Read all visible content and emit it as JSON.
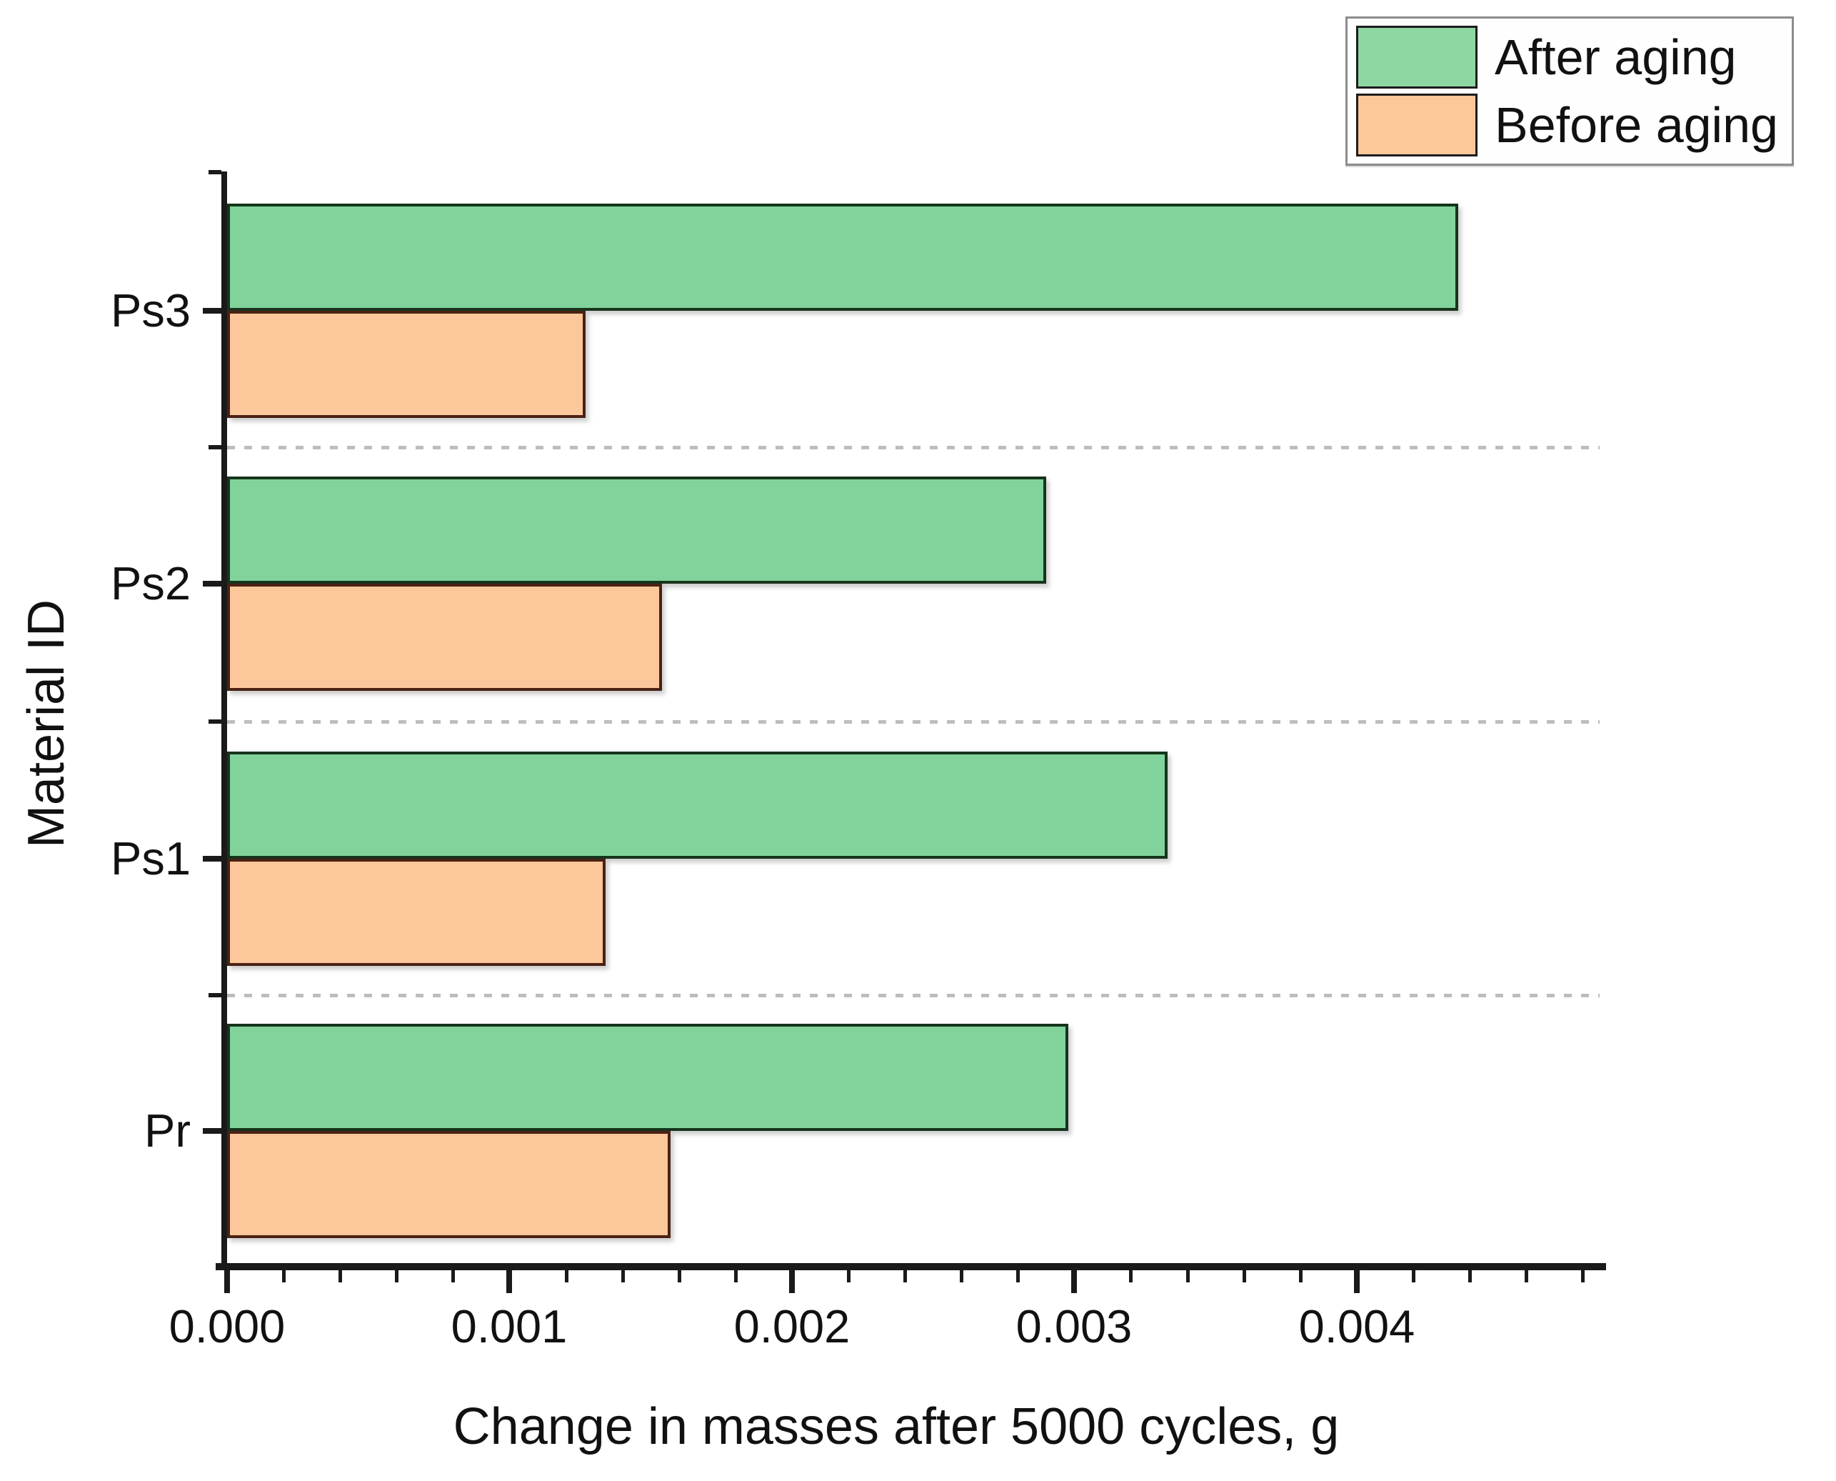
{
  "chart_data": {
    "type": "bar",
    "orientation": "horizontal",
    "title": "",
    "xlabel": "Change in masses after 5000 cycles, g",
    "ylabel": "Material ID",
    "categories": [
      "Ps3",
      "Ps2",
      "Ps1",
      "Pr"
    ],
    "categories_note": "listed top-to-bottom as displayed",
    "series": [
      {
        "name": "After aging",
        "color": "#81d39b",
        "border_color": "#16341c",
        "values": [
          0.00436,
          0.0029,
          0.00333,
          0.00298
        ]
      },
      {
        "name": "Before aging",
        "color": "#fbc79b",
        "border_color": "#4a2113",
        "values": [
          0.00127,
          0.00154,
          0.00134,
          0.00157
        ]
      }
    ],
    "x_tick_labels": [
      "0.000",
      "0.001",
      "0.002",
      "0.003",
      "0.004"
    ],
    "x_tick_values": [
      0,
      0.001,
      0.002,
      0.003,
      0.004
    ],
    "x_minor_step": 0.0002,
    "xlim": [
      0,
      0.004873
    ],
    "grid": "dashed gray horizontal separators between category groups",
    "legend_position": "top-right",
    "legend_entries": [
      "After aging",
      "Before aging"
    ]
  },
  "colors": {
    "after_aging_fill": "#81d39b",
    "after_aging_edge": "#16341c",
    "before_aging_fill": "#fbc79b",
    "before_aging_edge": "#4a2113",
    "axis": "#1a1a1a",
    "separator": "#bdbdbd",
    "legend_border": "#8c8c8c",
    "background": "#ffffff"
  }
}
